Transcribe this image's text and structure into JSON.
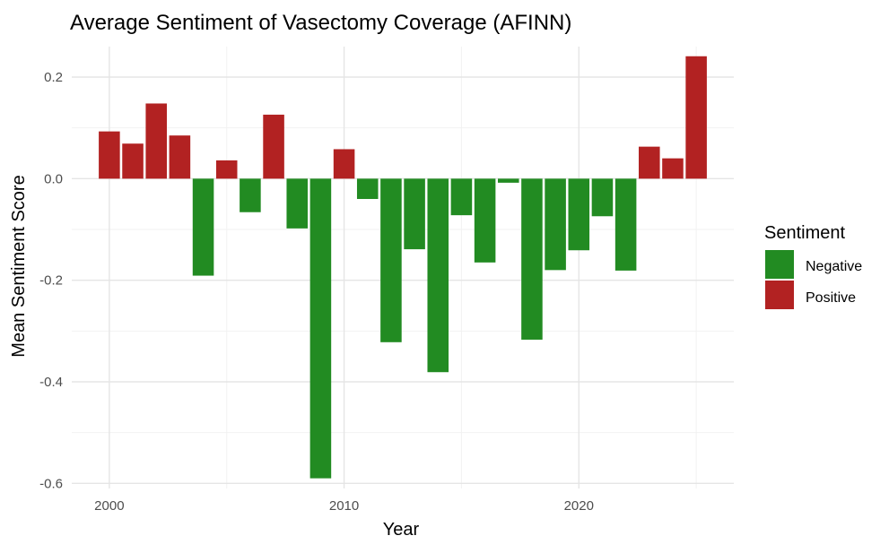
{
  "chart_data": {
    "type": "bar",
    "title": "Average Sentiment of Vasectomy Coverage (AFINN)",
    "xlabel": "Year",
    "ylabel": "Mean Sentiment Score",
    "x_ticks": [
      2000,
      2010,
      2020
    ],
    "y_ticks": [
      -0.6,
      -0.4,
      -0.2,
      0.0,
      0.2
    ],
    "y_tick_labels": [
      "-0.6",
      "-0.4",
      "-0.2",
      "0.0",
      "0.2"
    ],
    "x_tick_labels": [
      "2000",
      "2010",
      "2020"
    ],
    "xlim": [
      1998.4,
      2026.6
    ],
    "ylim": [
      -0.61,
      0.26
    ],
    "grid": true,
    "legend": {
      "title": "Sentiment",
      "placement": "right",
      "entries": [
        {
          "label": "Negative",
          "color": "#228B22"
        },
        {
          "label": "Positive",
          "color": "#B22222"
        }
      ]
    },
    "colors": {
      "Negative": "#228B22",
      "Positive": "#B22222"
    },
    "years": [
      2000,
      2001,
      2002,
      2003,
      2004,
      2005,
      2006,
      2007,
      2008,
      2009,
      2010,
      2011,
      2012,
      2013,
      2014,
      2015,
      2016,
      2017,
      2018,
      2019,
      2020,
      2021,
      2022,
      2023,
      2024,
      2025
    ],
    "values": [
      0.093,
      0.069,
      0.148,
      0.085,
      -0.191,
      0.036,
      -0.066,
      0.126,
      -0.098,
      -0.59,
      0.058,
      -0.04,
      -0.322,
      -0.139,
      -0.381,
      -0.072,
      -0.165,
      -0.008,
      -0.317,
      -0.18,
      -0.141,
      -0.074,
      -0.181,
      0.063,
      0.04,
      0.241
    ]
  }
}
